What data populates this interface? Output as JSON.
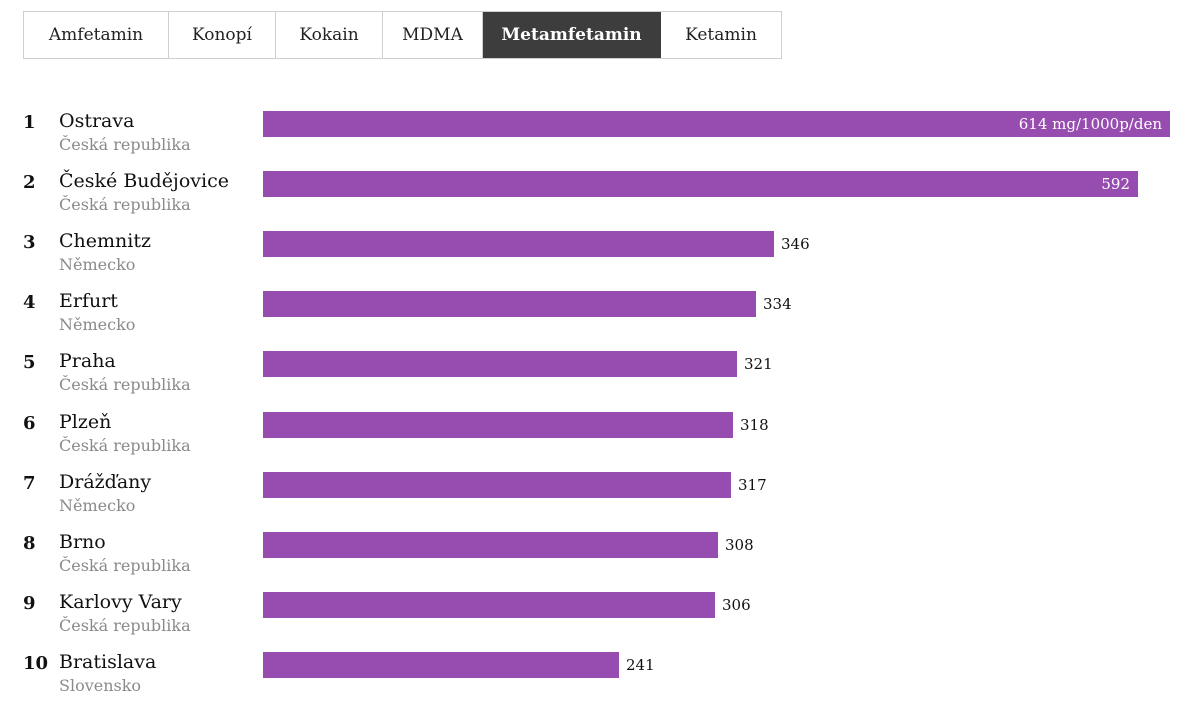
{
  "tabs": [
    {
      "label": "Amfetamin",
      "active": false
    },
    {
      "label": "Konopí",
      "active": false
    },
    {
      "label": "Kokain",
      "active": false
    },
    {
      "label": "MDMA",
      "active": false
    },
    {
      "label": "Metamfetamin",
      "active": true
    },
    {
      "label": "Ketamin",
      "active": false
    }
  ],
  "colors": {
    "bar": "#974cb0",
    "active_tab": "#3d3d3d",
    "country_text": "#8a8a8a"
  },
  "unit_label": "614 mg/1000p/den",
  "chart_data": {
    "type": "bar",
    "orientation": "horizontal",
    "title": "",
    "xlabel": "",
    "ylabel": "",
    "unit": "mg/1000p/den",
    "xlim": [
      0,
      614
    ],
    "categories": [
      "Ostrava",
      "České Budějovice",
      "Chemnitz",
      "Erfurt",
      "Praha",
      "Plzeň",
      "Drážďany",
      "Brno",
      "Karlovy Vary",
      "Bratislava"
    ],
    "rows": [
      {
        "rank": "1",
        "city": "Ostrava",
        "country": "Česká republika",
        "value": 614,
        "label": "614 mg/1000p/den"
      },
      {
        "rank": "2",
        "city": "České Budějovice",
        "country": "Česká republika",
        "value": 592,
        "label": "592"
      },
      {
        "rank": "3",
        "city": "Chemnitz",
        "country": "Německo",
        "value": 346,
        "label": "346"
      },
      {
        "rank": "4",
        "city": "Erfurt",
        "country": "Německo",
        "value": 334,
        "label": "334"
      },
      {
        "rank": "5",
        "city": "Praha",
        "country": "Česká republika",
        "value": 321,
        "label": "321"
      },
      {
        "rank": "6",
        "city": "Plzeň",
        "country": "Česká republika",
        "value": 318,
        "label": "318"
      },
      {
        "rank": "7",
        "city": "Drážďany",
        "country": "Německo",
        "value": 317,
        "label": "317"
      },
      {
        "rank": "8",
        "city": "Brno",
        "country": "Česká republika",
        "value": 308,
        "label": "308"
      },
      {
        "rank": "9",
        "city": "Karlovy Vary",
        "country": "Česká republika",
        "value": 306,
        "label": "306"
      },
      {
        "rank": "10",
        "city": "Bratislava",
        "country": "Slovensko",
        "value": 241,
        "label": "241"
      }
    ]
  }
}
